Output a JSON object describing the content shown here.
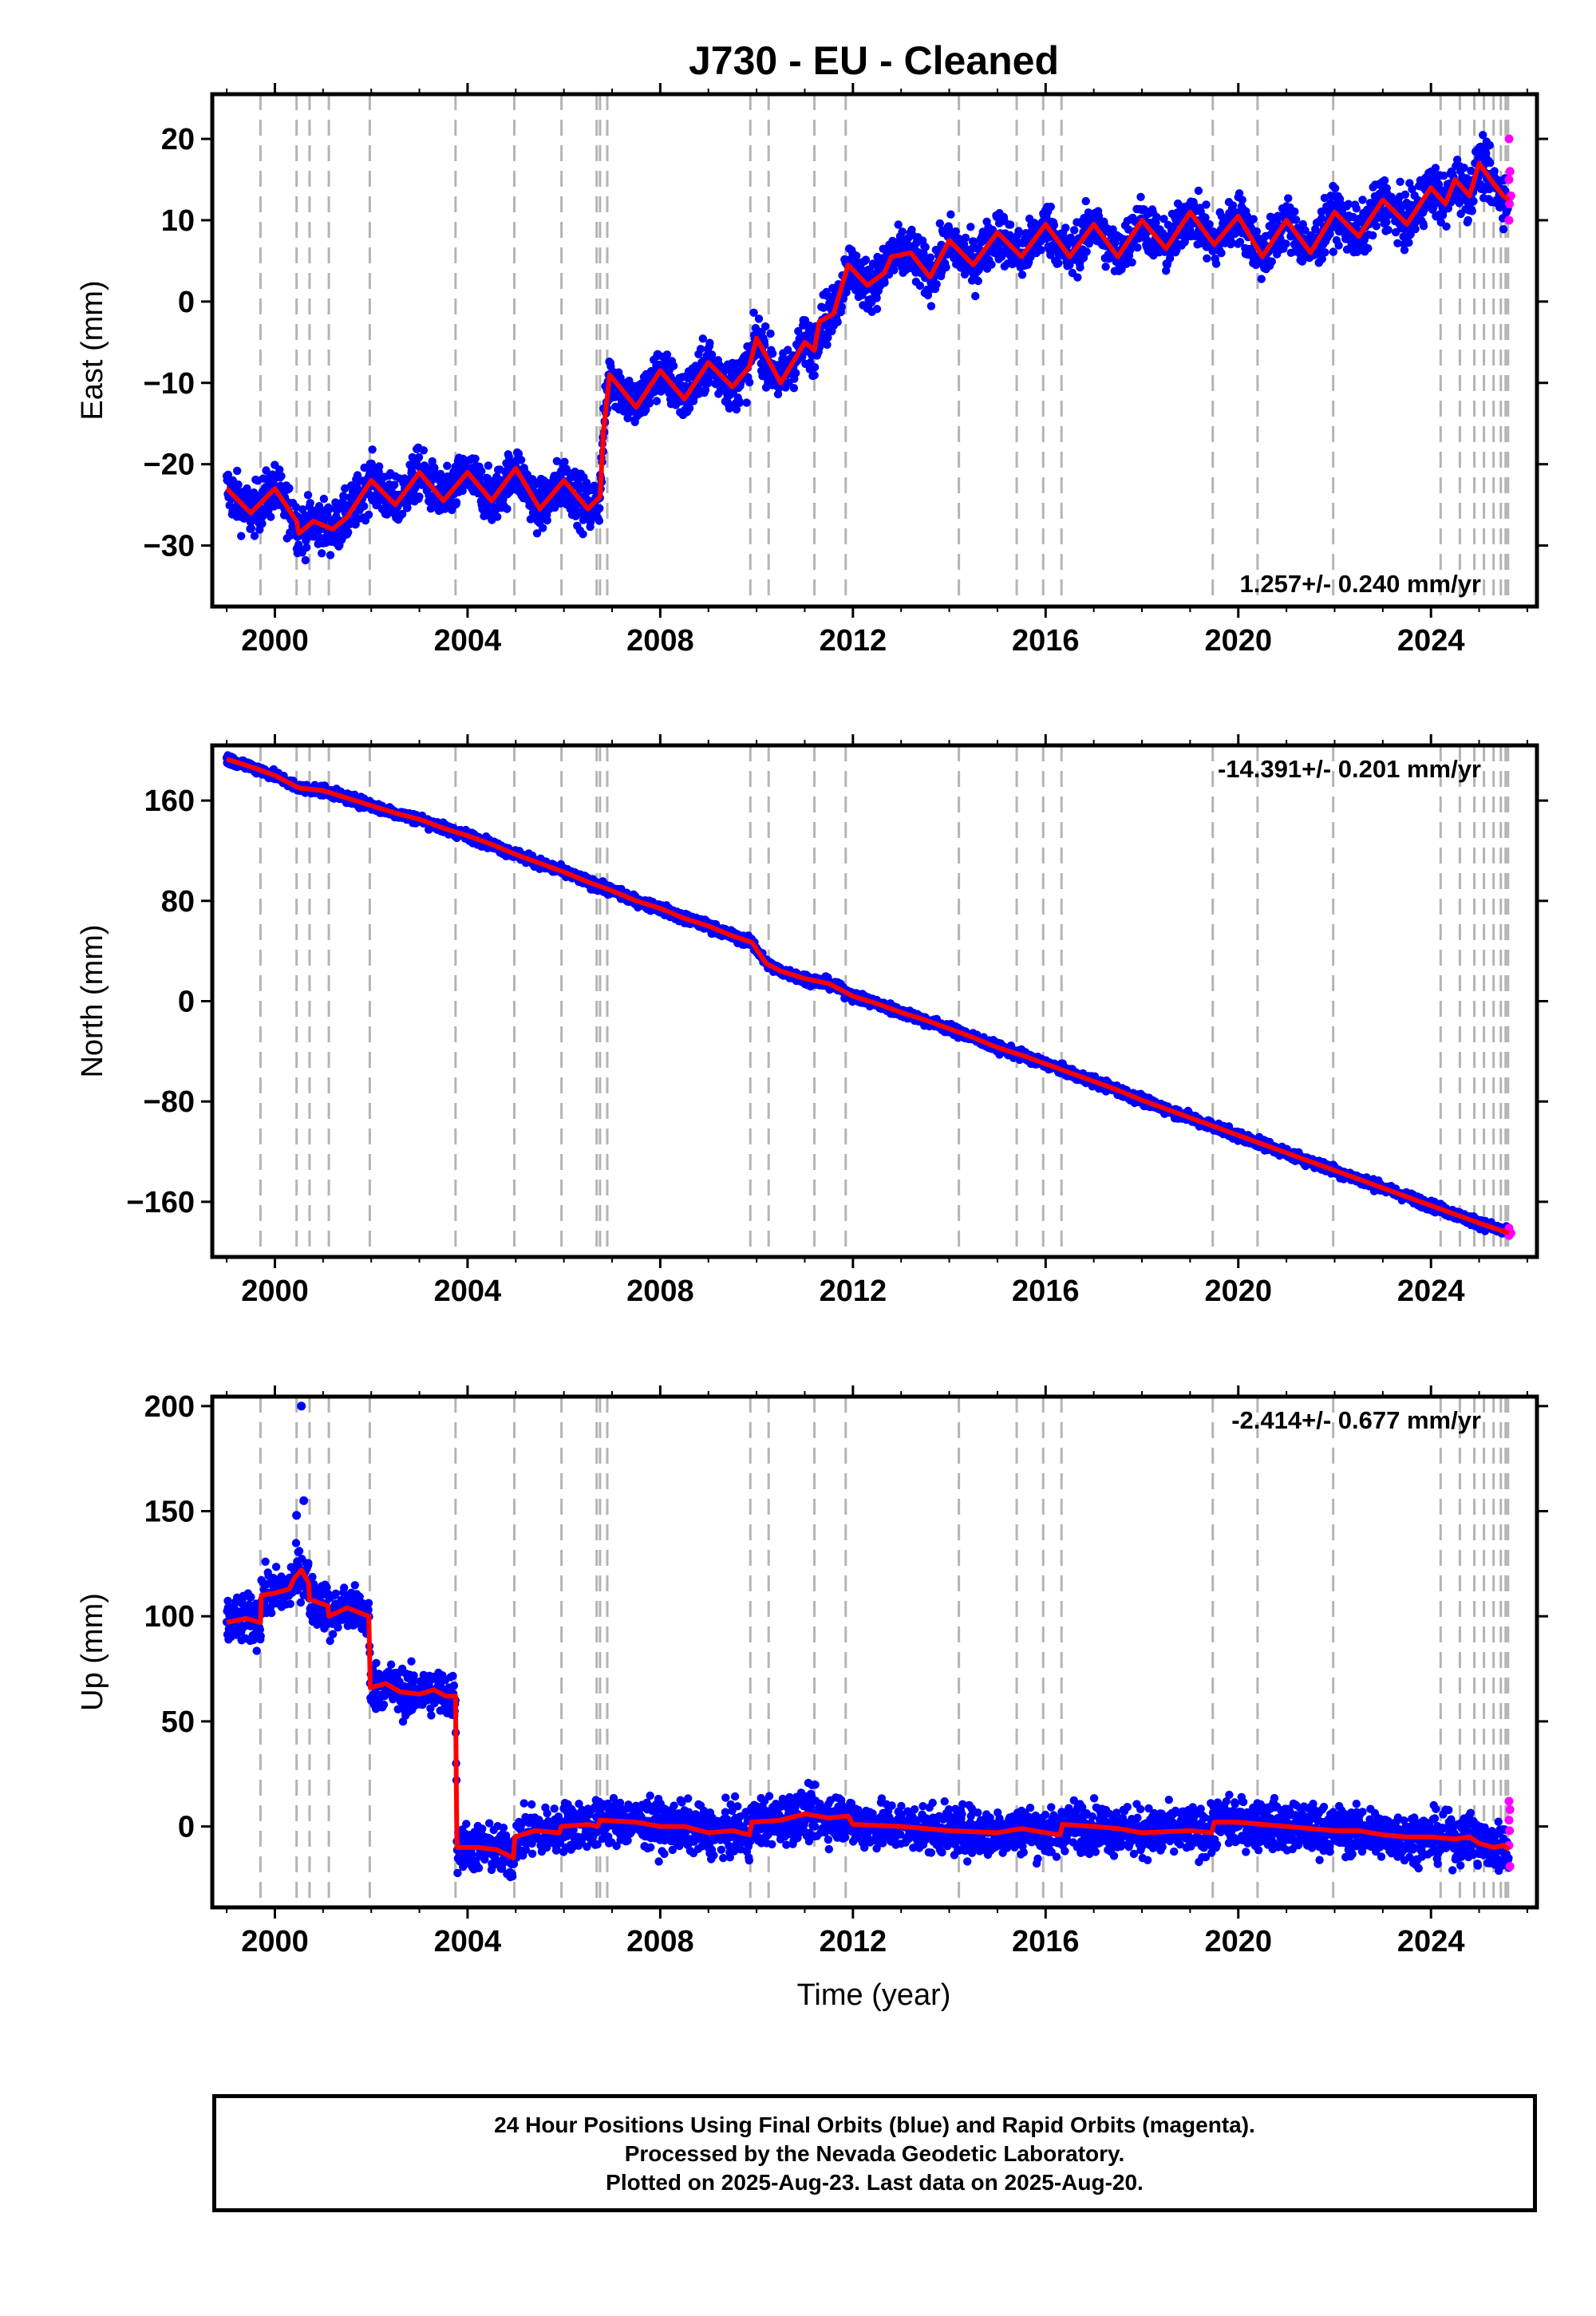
{
  "title": "J730  - EU - Cleaned",
  "xlabel": "Time (year)",
  "footer": {
    "line1": "24 Hour Positions Using Final Orbits (blue) and Rapid Orbits (magenta).",
    "line2": "Processed by the Nevada Geodetic Laboratory.",
    "line3": "Plotted on 2025-Aug-23. Last data on 2025-Aug-20."
  },
  "colors": {
    "final_orbits": "#0000ff",
    "rapid_orbits": "#ff00ff",
    "model": "#ff0000",
    "event_lines": "#b4b4b4"
  },
  "chart_data": [
    {
      "type": "scatter",
      "title": "J730  - EU - Cleaned",
      "ylabel": "East (mm)",
      "xlim": [
        1998.7,
        2026.2
      ],
      "ylim": [
        -37.5,
        25.5
      ],
      "xticks": [
        2000,
        2004,
        2008,
        2012,
        2016,
        2020,
        2024
      ],
      "xtick_labels": [
        "2000",
        "2004",
        "2008",
        "2012",
        "2016",
        "2020",
        "2024"
      ],
      "yticks": [
        20,
        10,
        0,
        -10,
        -20,
        -30
      ],
      "ytick_labels": [
        "20",
        "10",
        "0",
        "−10",
        "−20",
        "−30"
      ],
      "rate": "1.257+/- 0.240 mm/yr",
      "rate_position": "bottom-right",
      "grid": false,
      "scatter_spread": 2.2,
      "model": [
        [
          1999.0,
          -23
        ],
        [
          1999.5,
          -26
        ],
        [
          2000.0,
          -23
        ],
        [
          2000.45,
          -27
        ],
        [
          2000.5,
          -28.5
        ],
        [
          2000.8,
          -27
        ],
        [
          2001.2,
          -28
        ],
        [
          2001.5,
          -26.5
        ],
        [
          2002.0,
          -22
        ],
        [
          2002.5,
          -25
        ],
        [
          2003.0,
          -21
        ],
        [
          2003.5,
          -24.5
        ],
        [
          2004.0,
          -21
        ],
        [
          2004.5,
          -24.5
        ],
        [
          2005.0,
          -20.5
        ],
        [
          2005.5,
          -25.5
        ],
        [
          2006.0,
          -22
        ],
        [
          2006.5,
          -25.5
        ],
        [
          2006.75,
          -24
        ],
        [
          2006.82,
          -16
        ],
        [
          2006.95,
          -9
        ],
        [
          2007.5,
          -13
        ],
        [
          2008.0,
          -8.5
        ],
        [
          2008.5,
          -12
        ],
        [
          2009.0,
          -7.5
        ],
        [
          2009.5,
          -10.5
        ],
        [
          2009.85,
          -8
        ],
        [
          2010.0,
          -4.5
        ],
        [
          2010.5,
          -10
        ],
        [
          2011.0,
          -5
        ],
        [
          2011.2,
          -6
        ],
        [
          2011.3,
          -2.5
        ],
        [
          2011.6,
          -1.5
        ],
        [
          2011.9,
          4.5
        ],
        [
          2012.3,
          2
        ],
        [
          2012.65,
          3.5
        ],
        [
          2012.8,
          5.5
        ],
        [
          2013.2,
          6
        ],
        [
          2013.6,
          3
        ],
        [
          2014.0,
          7.5
        ],
        [
          2014.5,
          4.5
        ],
        [
          2015.0,
          8.5
        ],
        [
          2015.5,
          5.5
        ],
        [
          2016.0,
          9.5
        ],
        [
          2016.5,
          5.5
        ],
        [
          2017.0,
          9.5
        ],
        [
          2017.5,
          5.5
        ],
        [
          2018.0,
          10
        ],
        [
          2018.5,
          6.5
        ],
        [
          2019.0,
          11
        ],
        [
          2019.5,
          7
        ],
        [
          2020.0,
          10.5
        ],
        [
          2020.5,
          5.5
        ],
        [
          2021.0,
          10
        ],
        [
          2021.5,
          6
        ],
        [
          2022.0,
          11
        ],
        [
          2022.5,
          8
        ],
        [
          2023.0,
          12.5
        ],
        [
          2023.5,
          9.5
        ],
        [
          2024.0,
          14
        ],
        [
          2024.3,
          12
        ],
        [
          2024.5,
          15
        ],
        [
          2024.8,
          13
        ],
        [
          2025.0,
          17
        ],
        [
          2025.3,
          14.5
        ],
        [
          2025.5,
          13
        ],
        [
          2025.62,
          12.5
        ]
      ],
      "rapid_points": [
        [
          2025.62,
          20
        ],
        [
          2025.64,
          16
        ],
        [
          2025.62,
          15
        ],
        [
          2025.66,
          13
        ],
        [
          2025.63,
          12
        ],
        [
          2025.62,
          10
        ]
      ]
    },
    {
      "type": "scatter",
      "ylabel": "North (mm)",
      "xlim": [
        1998.7,
        2026.2
      ],
      "ylim": [
        -204,
        204
      ],
      "xticks": [
        2000,
        2004,
        2008,
        2012,
        2016,
        2020,
        2024
      ],
      "xtick_labels": [
        "2000",
        "2004",
        "2008",
        "2012",
        "2016",
        "2020",
        "2024"
      ],
      "yticks": [
        160,
        80,
        0,
        -80,
        -160
      ],
      "ytick_labels": [
        "160",
        "80",
        "0",
        "−80",
        "−160"
      ],
      "rate": "-14.391+/- 0.201 mm/yr",
      "rate_position": "top-right",
      "grid": false,
      "scatter_spread": 2.8,
      "model": [
        [
          1999.0,
          193
        ],
        [
          1999.5,
          187
        ],
        [
          2000.0,
          180
        ],
        [
          2000.5,
          170
        ],
        [
          2001.0,
          168
        ],
        [
          2001.5,
          162
        ],
        [
          2002.0,
          156
        ],
        [
          2002.5,
          150
        ],
        [
          2003.0,
          145
        ],
        [
          2003.5,
          138
        ],
        [
          2004.0,
          132
        ],
        [
          2004.5,
          125
        ],
        [
          2005.0,
          117
        ],
        [
          2005.5,
          110
        ],
        [
          2006.0,
          103
        ],
        [
          2006.5,
          95
        ],
        [
          2007.0,
          88
        ],
        [
          2007.5,
          80
        ],
        [
          2008.0,
          74
        ],
        [
          2008.5,
          66
        ],
        [
          2009.0,
          60
        ],
        [
          2009.5,
          52
        ],
        [
          2009.9,
          47
        ],
        [
          2010.2,
          30
        ],
        [
          2010.5,
          24
        ],
        [
          2011.0,
          18
        ],
        [
          2011.5,
          14
        ],
        [
          2012.0,
          4
        ],
        [
          2012.5,
          -2
        ],
        [
          2013.0,
          -9
        ],
        [
          2013.5,
          -15
        ],
        [
          2014.0,
          -22
        ],
        [
          2014.5,
          -29
        ],
        [
          2015.0,
          -37
        ],
        [
          2015.5,
          -43
        ],
        [
          2016.0,
          -50
        ],
        [
          2016.5,
          -57
        ],
        [
          2017.0,
          -64
        ],
        [
          2017.5,
          -71
        ],
        [
          2018.0,
          -79
        ],
        [
          2018.5,
          -86
        ],
        [
          2019.0,
          -93
        ],
        [
          2019.5,
          -100
        ],
        [
          2020.0,
          -107
        ],
        [
          2020.5,
          -114
        ],
        [
          2021.0,
          -121
        ],
        [
          2021.5,
          -128
        ],
        [
          2022.0,
          -135
        ],
        [
          2022.5,
          -142
        ],
        [
          2023.0,
          -149
        ],
        [
          2023.5,
          -156
        ],
        [
          2024.0,
          -163
        ],
        [
          2024.5,
          -170
        ],
        [
          2025.0,
          -177
        ],
        [
          2025.62,
          -185
        ]
      ],
      "rapid_points": [
        [
          2025.62,
          -181
        ],
        [
          2025.64,
          -184
        ],
        [
          2025.62,
          -187
        ],
        [
          2025.66,
          -185
        ]
      ]
    },
    {
      "type": "scatter",
      "ylabel": "Up (mm)",
      "xlim": [
        1998.7,
        2026.2
      ],
      "ylim": [
        -38.5,
        204.5
      ],
      "xticks": [
        2000,
        2004,
        2008,
        2012,
        2016,
        2020,
        2024
      ],
      "xtick_labels": [
        "2000",
        "2004",
        "2008",
        "2012",
        "2016",
        "2020",
        "2024"
      ],
      "yticks": [
        200,
        150,
        100,
        50,
        0
      ],
      "ytick_labels": [
        "200",
        "150",
        "100",
        "50",
        "0"
      ],
      "rate": "-2.414+/- 0.677 mm/yr",
      "rate_position": "top-right",
      "grid": false,
      "scatter_spread": 8,
      "model": [
        [
          1999.0,
          97
        ],
        [
          1999.4,
          99
        ],
        [
          1999.7,
          97
        ],
        [
          1999.72,
          110
        ],
        [
          2000.0,
          111
        ],
        [
          2000.3,
          113
        ],
        [
          2000.4,
          118
        ],
        [
          2000.55,
          122
        ],
        [
          2000.7,
          116
        ],
        [
          2000.72,
          108
        ],
        [
          2001.1,
          105
        ],
        [
          2001.12,
          100
        ],
        [
          2001.5,
          104
        ],
        [
          2001.95,
          100
        ],
        [
          2001.98,
          66
        ],
        [
          2002.3,
          68
        ],
        [
          2002.6,
          64
        ],
        [
          2003.0,
          63
        ],
        [
          2003.3,
          65
        ],
        [
          2003.55,
          62
        ],
        [
          2003.75,
          62
        ],
        [
          2003.78,
          -10
        ],
        [
          2004.2,
          -10
        ],
        [
          2004.6,
          -11
        ],
        [
          2004.95,
          -15
        ],
        [
          2004.98,
          -5
        ],
        [
          2005.4,
          -2
        ],
        [
          2005.9,
          -3
        ],
        [
          2005.95,
          0
        ],
        [
          2006.5,
          1
        ],
        [
          2006.7,
          0
        ],
        [
          2006.75,
          3
        ],
        [
          2007.5,
          2
        ],
        [
          2008.0,
          0
        ],
        [
          2008.5,
          0
        ],
        [
          2009.0,
          -3
        ],
        [
          2009.5,
          -2
        ],
        [
          2009.85,
          -4
        ],
        [
          2009.9,
          2
        ],
        [
          2010.5,
          3
        ],
        [
          2011.0,
          6
        ],
        [
          2011.5,
          4
        ],
        [
          2011.9,
          5
        ],
        [
          2012.0,
          1
        ],
        [
          2013.0,
          0
        ],
        [
          2014.0,
          -2
        ],
        [
          2015.0,
          -3
        ],
        [
          2015.5,
          -1
        ],
        [
          2016.0,
          -3
        ],
        [
          2016.3,
          -4
        ],
        [
          2016.35,
          1
        ],
        [
          2017.0,
          0
        ],
        [
          2017.5,
          -1
        ],
        [
          2018.0,
          -3
        ],
        [
          2019.0,
          -2
        ],
        [
          2019.45,
          -3
        ],
        [
          2019.5,
          2
        ],
        [
          2020.0,
          2
        ],
        [
          2020.5,
          1
        ],
        [
          2021.0,
          0
        ],
        [
          2021.5,
          -1
        ],
        [
          2022.0,
          -2
        ],
        [
          2022.5,
          -2
        ],
        [
          2023.0,
          -4
        ],
        [
          2023.5,
          -5
        ],
        [
          2024.0,
          -5
        ],
        [
          2024.5,
          -6
        ],
        [
          2024.8,
          -5
        ],
        [
          2025.0,
          -8
        ],
        [
          2025.3,
          -10
        ],
        [
          2025.5,
          -9
        ],
        [
          2025.62,
          -11
        ]
      ],
      "outliers": [
        [
          2000.55,
          200
        ],
        [
          2000.6,
          155
        ],
        [
          2000.45,
          148
        ]
      ],
      "rapid_points": [
        [
          2025.62,
          12
        ],
        [
          2025.64,
          8
        ],
        [
          2025.62,
          3
        ],
        [
          2025.63,
          -2
        ],
        [
          2025.62,
          -9
        ],
        [
          2025.64,
          -19
        ]
      ]
    }
  ],
  "event_lines": [
    1999.7,
    2000.45,
    2000.72,
    2001.12,
    2001.97,
    2003.75,
    2004.97,
    2005.95,
    2006.68,
    2006.75,
    2006.9,
    2009.87,
    2010.25,
    2011.2,
    2011.85,
    2014.2,
    2015.4,
    2015.95,
    2016.33,
    2019.47,
    2020.4,
    2021.97,
    2024.2,
    2024.6,
    2024.9,
    2025.1,
    2025.3,
    2025.45,
    2025.55,
    2025.6
  ]
}
